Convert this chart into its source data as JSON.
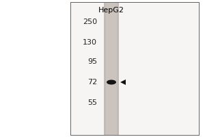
{
  "fig_bg": "#ffffff",
  "blot_bg": "#f5f4f2",
  "lane_color": "#d0cac4",
  "lane_dark": "#b8b2ac",
  "cell_line_label": "HepG2",
  "mw_markers": [
    250,
    130,
    95,
    72,
    55
  ],
  "band_color": "#1a1a1a",
  "arrow_color": "#111111",
  "border_color": "#555555"
}
